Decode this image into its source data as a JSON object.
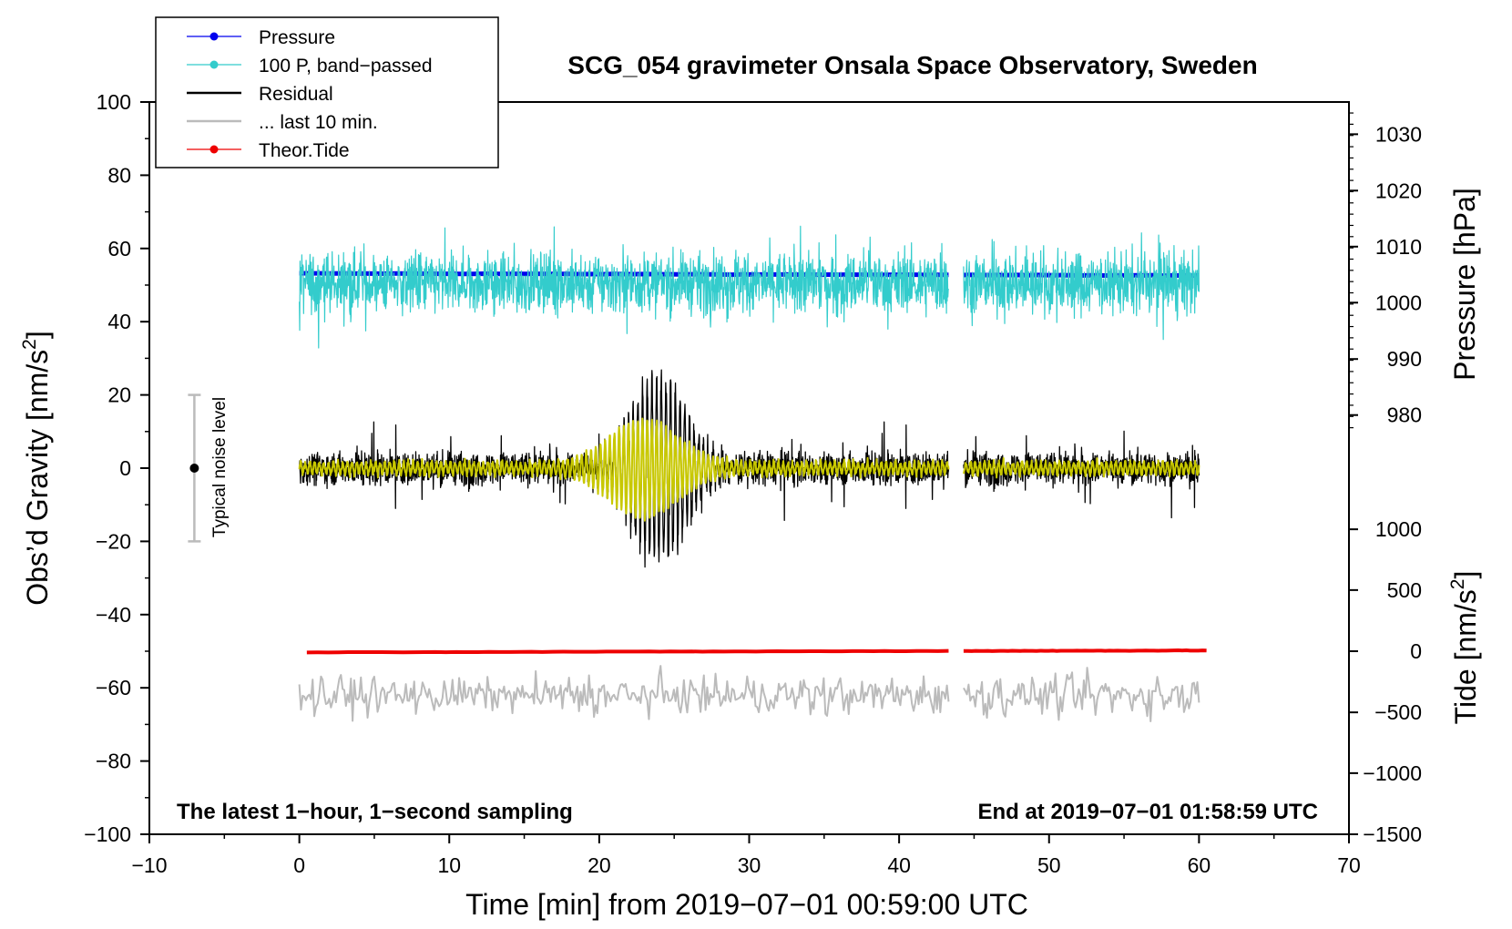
{
  "chart_data": {
    "type": "line",
    "title": "SCG_054 gravimeter Onsala Space Observatory, Sweden",
    "xlabel": "Time [min] from 2019−07−01 00:59:00 UTC",
    "ylabel_left": "Obs’d Gravity [nm/s",
    "ylabel_left_sup": "2",
    "ylabel_left_end": "]",
    "ylabel_right_pressure": "Pressure [hPa]",
    "ylabel_right_tide": "Tide [nm/s",
    "ylabel_right_tide_sup": "2",
    "ylabel_right_tide_end": "]",
    "xlim": [
      -10,
      70
    ],
    "ylim_left": [
      -100,
      100
    ],
    "xticks": [
      "−10",
      "0",
      "10",
      "20",
      "30",
      "40",
      "50",
      "60",
      "70"
    ],
    "yticks_left": [
      "100",
      "80",
      "60",
      "40",
      "20",
      "0",
      "−20",
      "−40",
      "−60",
      "−80",
      "−100"
    ],
    "yticks_pressure": [
      "1030",
      "1020",
      "1010",
      "1000",
      "990",
      "980"
    ],
    "yticks_tide": [
      "1000",
      "500",
      "0",
      "−500",
      "−1000",
      "−1500"
    ],
    "pressure_ticks_hpa": [
      1030,
      1020,
      1010,
      1000,
      990,
      980
    ],
    "pressure_tick_gravity": [
      91.2,
      75.8,
      60.5,
      45.2,
      29.8,
      14.5
    ],
    "tide_ticks": [
      1000,
      500,
      0,
      -500,
      -1000,
      -1500
    ],
    "tide_tick_gravity": [
      -16.7,
      -33.3,
      -50.0,
      -66.7,
      -83.3,
      -100.0
    ],
    "note_left": "The latest 1−hour, 1−second sampling",
    "note_right": "End at 2019−07−01 01:58:59 UTC",
    "noise_label": "Typical noise level",
    "noise_bar": {
      "x": -7,
      "center": 0,
      "low": -20,
      "high": 20
    },
    "gap": [
      43.3,
      44.3
    ],
    "legend": [
      {
        "label": "Pressure",
        "color": "#0000ee",
        "marker": true
      },
      {
        "label": "100 P, band−passed",
        "color": "#33cccc",
        "marker": true
      },
      {
        "label": "Residual",
        "color": "#000000",
        "marker": false
      },
      {
        "label": "... last 10 min.",
        "color": "#bbbbbb",
        "marker": false
      },
      {
        "label": "Theor.Tide",
        "color": "#ee0000",
        "marker": true
      }
    ],
    "series": [
      {
        "name": "Pressure",
        "color": "#0000ee",
        "x_range": [
          0,
          60
        ],
        "start": 53.2,
        "end": 52.6,
        "width": 5,
        "unit": "hPa approx 1004.6 to 1004.2"
      },
      {
        "name": "100 P, band−passed",
        "color": "#33cccc",
        "x_range": [
          0,
          60
        ],
        "center": 50.5,
        "amplitude": 7,
        "width": 1.2
      },
      {
        "name": "Residual",
        "color": "#000000",
        "x_range": [
          0,
          60
        ],
        "center": 0,
        "burst_center_min": 24,
        "burst_peak": 28,
        "base_amplitude": 4,
        "width": 1.3
      },
      {
        "color": "#c8c800",
        "x_range": [
          0,
          60
        ],
        "center": 0,
        "burst_center_min": 23,
        "burst_peak": 12,
        "width": 2
      },
      {
        "name": "... last 10 min.",
        "color": "#bbbbbb",
        "x_range": [
          0,
          60
        ],
        "center": -62,
        "amplitude": 4,
        "width": 2
      },
      {
        "name": "Theor.Tide",
        "color": "#ee0000",
        "x_range": [
          0.5,
          60.5
        ],
        "start": -50.3,
        "end": -49.8,
        "width": 4
      }
    ]
  }
}
